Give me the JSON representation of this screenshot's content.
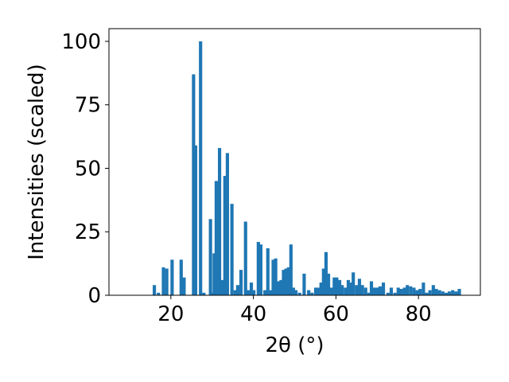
{
  "chart_data": {
    "type": "bar",
    "title": "",
    "xlabel": "2θ (°)",
    "ylabel": "Intensities (scaled)",
    "xlim": [
      5,
      95
    ],
    "ylim": [
      0,
      105
    ],
    "xticks": [
      20,
      40,
      60,
      80
    ],
    "yticks": [
      0,
      25,
      50,
      75,
      100
    ],
    "grid": false,
    "bar_width": 0.8,
    "color": "#1f77b4",
    "x": [
      16.0,
      17.0,
      18.2,
      19.0,
      20.3,
      22.5,
      23.2,
      25.5,
      26.0,
      27.2,
      28.0,
      29.6,
      30.0,
      30.5,
      31.0,
      31.8,
      32.5,
      33.1,
      33.7,
      34.8,
      35.6,
      36.2,
      37.0,
      38.1,
      38.8,
      39.5,
      40.1,
      41.2,
      41.8,
      42.8,
      43.5,
      44.2,
      44.8,
      45.4,
      46.0,
      46.7,
      47.3,
      47.9,
      48.5,
      49.1,
      49.7,
      50.3,
      51.2,
      52.3,
      53.4,
      54.2,
      55.1,
      55.8,
      56.4,
      57.0,
      57.6,
      58.2,
      58.9,
      59.6,
      60.2,
      60.9,
      61.5,
      62.3,
      63.0,
      63.6,
      64.2,
      65.0,
      65.7,
      66.4,
      67.2,
      68.0,
      68.6,
      69.3,
      70.0,
      70.7,
      71.5,
      72.6,
      73.4,
      74.3,
      75.1,
      75.8,
      76.6,
      77.3,
      78.1,
      78.9,
      79.7,
      80.4,
      81.2,
      82.0,
      82.8,
      83.6,
      84.3,
      85.1,
      85.9,
      86.7,
      87.5,
      88.3,
      89.1,
      89.9
    ],
    "values": [
      4,
      1,
      11,
      10.5,
      14,
      14,
      7,
      87,
      59,
      100,
      1,
      30,
      1,
      16.5,
      45,
      58,
      6,
      47,
      56,
      36,
      2,
      4,
      10,
      29,
      2,
      5,
      2,
      21,
      20,
      2,
      18.5,
      2,
      14,
      14.5,
      5.5,
      6,
      10,
      10.5,
      11,
      20,
      3,
      2,
      1,
      8.5,
      2,
      1,
      3,
      3,
      5,
      10.5,
      17,
      8.5,
      3,
      7,
      7,
      6,
      4,
      3,
      6,
      5,
      9,
      4,
      6.5,
      4,
      3,
      1,
      5.5,
      3,
      3,
      3.5,
      5,
      1,
      3,
      1,
      3,
      2.5,
      3,
      4,
      3.5,
      3,
      2,
      2.5,
      5,
      1,
      2,
      4,
      2.5,
      2,
      1.5,
      1,
      1.5,
      2,
      1.5,
      2.5
    ]
  }
}
